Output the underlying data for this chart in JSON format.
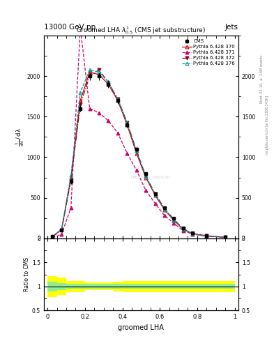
{
  "title": "13000 GeV pp",
  "title_right": "Jets",
  "plot_title": "Groomed LHA $\\lambda^{1}_{0.5}$ (CMS jet substructure)",
  "xlabel": "groomed LHA",
  "ratio_ylabel": "Ratio to CMS",
  "watermark": "CMS_2021_I1920187",
  "rivet_text": "Rivet 3.1.10, $\\geq$ 2.6M events",
  "arxiv_text": "mcplots.cern.ch [arXiv:1306.3436]",
  "x_bins": [
    0.0,
    0.05,
    0.1,
    0.15,
    0.2,
    0.25,
    0.3,
    0.35,
    0.4,
    0.45,
    0.5,
    0.55,
    0.6,
    0.65,
    0.7,
    0.75,
    0.8,
    0.9,
    1.0
  ],
  "cms_values": [
    20,
    100,
    700,
    1600,
    2000,
    2000,
    1900,
    1700,
    1400,
    1100,
    800,
    550,
    380,
    250,
    130,
    65,
    35,
    15
  ],
  "cms_err_stat": [
    5,
    15,
    30,
    40,
    45,
    45,
    45,
    40,
    35,
    30,
    25,
    20,
    15,
    12,
    8,
    5,
    4,
    2
  ],
  "py370_values": [
    20,
    110,
    750,
    1700,
    2050,
    2020,
    1900,
    1700,
    1400,
    1050,
    750,
    530,
    350,
    220,
    110,
    57,
    28,
    12
  ],
  "py371_values": [
    5,
    50,
    380,
    2600,
    1600,
    1550,
    1450,
    1300,
    1050,
    840,
    590,
    430,
    280,
    185,
    93,
    50,
    25,
    11
  ],
  "py372_values": [
    18,
    100,
    720,
    1650,
    2000,
    2080,
    1920,
    1720,
    1430,
    1080,
    770,
    550,
    370,
    233,
    118,
    60,
    30,
    13
  ],
  "py376_values": [
    20,
    115,
    780,
    1800,
    2080,
    2050,
    1930,
    1720,
    1430,
    1080,
    770,
    540,
    355,
    222,
    112,
    55,
    27,
    12
  ],
  "ratio_cms_green_lo": [
    0.9,
    0.93,
    0.95,
    0.95,
    0.95,
    0.95,
    0.95,
    0.95,
    0.95,
    0.95,
    0.95,
    0.95,
    0.95,
    0.95,
    0.95,
    0.95,
    0.95,
    0.95
  ],
  "ratio_cms_green_hi": [
    1.1,
    1.07,
    1.05,
    1.05,
    1.05,
    1.05,
    1.05,
    1.05,
    1.05,
    1.05,
    1.05,
    1.05,
    1.05,
    1.05,
    1.05,
    1.05,
    1.05,
    1.05
  ],
  "ratio_cms_yellow_lo": [
    0.78,
    0.82,
    0.88,
    0.88,
    0.92,
    0.92,
    0.92,
    0.9,
    0.88,
    0.88,
    0.88,
    0.88,
    0.88,
    0.88,
    0.88,
    0.88,
    0.88,
    0.88
  ],
  "ratio_cms_yellow_hi": [
    1.22,
    1.18,
    1.12,
    1.12,
    1.08,
    1.08,
    1.08,
    1.1,
    1.12,
    1.12,
    1.12,
    1.12,
    1.12,
    1.12,
    1.12,
    1.12,
    1.12,
    1.12
  ],
  "color_py370": "#cc0000",
  "color_py371": "#cc0066",
  "color_py372": "#880022",
  "color_py376": "#009999",
  "ylim_main": [
    0,
    2500
  ],
  "yticks_main": [
    0,
    500,
    1000,
    1500,
    2000
  ],
  "ytick_labels_main": [
    "0",
    "500",
    "1000",
    "1500",
    "2000"
  ],
  "ylim_ratio": [
    0.5,
    2.0
  ],
  "yticks_ratio": [
    0.5,
    1.0,
    1.5,
    2.0
  ],
  "xticks": [
    0.0,
    0.2,
    0.4,
    0.6,
    0.8,
    1.0
  ]
}
